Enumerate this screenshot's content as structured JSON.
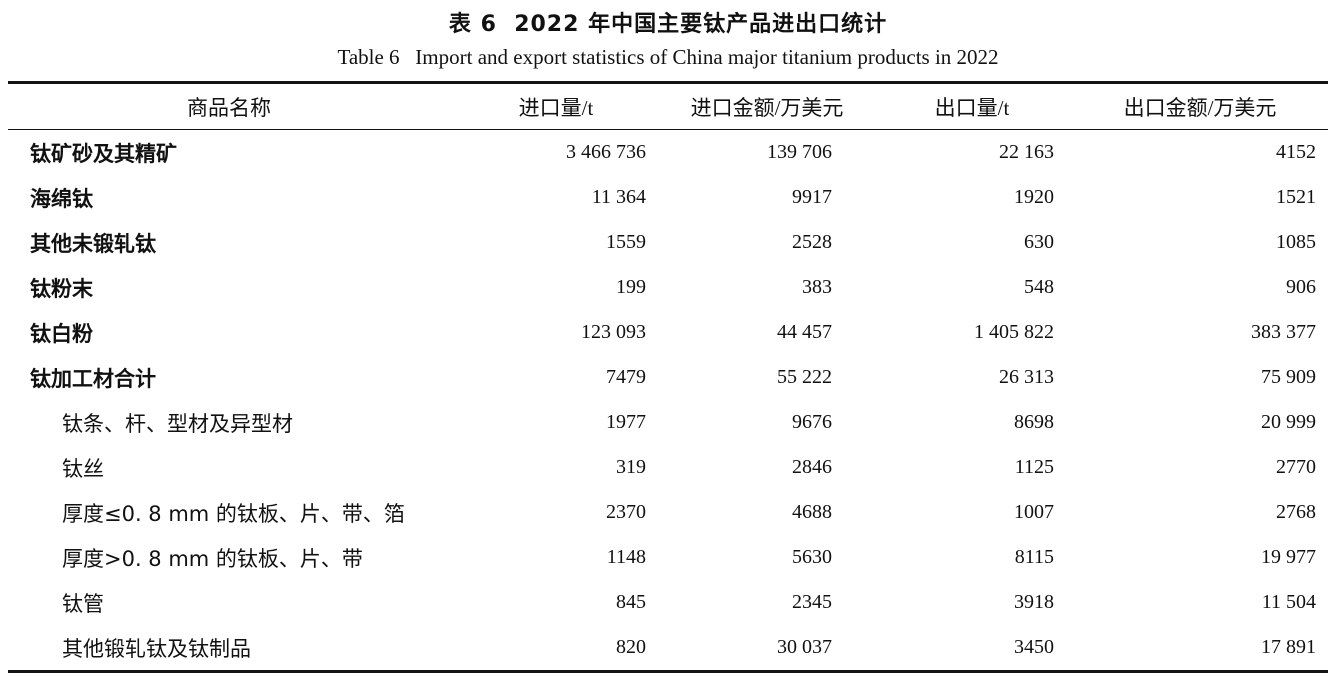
{
  "caption": {
    "zh": "表 6  2022 年中国主要钛产品进出口统计",
    "en": "Table 6   Import and export statistics of China major titanium products in 2022"
  },
  "table": {
    "headers": [
      "商品名称",
      "进口量/t",
      "进口金额/万美元",
      "出口量/t",
      "出口金额/万美元"
    ],
    "rows": [
      {
        "name": "钛矿砂及其精矿",
        "level": "main",
        "import_qty": "3 466 736",
        "import_value": "139 706",
        "export_qty": "22 163",
        "export_value": "4152"
      },
      {
        "name": "海绵钛",
        "level": "main",
        "import_qty": "11 364",
        "import_value": "9917",
        "export_qty": "1920",
        "export_value": "1521"
      },
      {
        "name": "其他未锻轧钛",
        "level": "main",
        "import_qty": "1559",
        "import_value": "2528",
        "export_qty": "630",
        "export_value": "1085"
      },
      {
        "name": "钛粉末",
        "level": "main",
        "import_qty": "199",
        "import_value": "383",
        "export_qty": "548",
        "export_value": "906"
      },
      {
        "name": "钛白粉",
        "level": "main",
        "import_qty": "123 093",
        "import_value": "44 457",
        "export_qty": "1 405 822",
        "export_value": "383 377"
      },
      {
        "name": "钛加工材合计",
        "level": "main",
        "import_qty": "7479",
        "import_value": "55 222",
        "export_qty": "26 313",
        "export_value": "75 909"
      },
      {
        "name": "钛条、杆、型材及异型材",
        "level": "sub",
        "import_qty": "1977",
        "import_value": "9676",
        "export_qty": "8698",
        "export_value": "20 999"
      },
      {
        "name": "钛丝",
        "level": "sub",
        "import_qty": "319",
        "import_value": "2846",
        "export_qty": "1125",
        "export_value": "2770"
      },
      {
        "name": "厚度≤0. 8 mm 的钛板、片、带、箔",
        "level": "sub",
        "import_qty": "2370",
        "import_value": "4688",
        "export_qty": "1007",
        "export_value": "2768"
      },
      {
        "name": "厚度>0. 8 mm 的钛板、片、带",
        "level": "sub",
        "import_qty": "1148",
        "import_value": "5630",
        "export_qty": "8115",
        "export_value": "19 977"
      },
      {
        "name": "钛管",
        "level": "sub",
        "import_qty": "845",
        "import_value": "2345",
        "export_qty": "3918",
        "export_value": "11 504"
      },
      {
        "name": "其他锻轧钛及钛制品",
        "level": "sub",
        "import_qty": "820",
        "import_value": "30 037",
        "export_qty": "3450",
        "export_value": "17 891"
      }
    ]
  },
  "chart_data": {
    "type": "table",
    "title": "表 6 2022 年中国主要钛产品进出口统计 / Table 6 Import and export statistics of China major titanium products in 2022",
    "columns": [
      "商品名称",
      "进口量/t",
      "进口金额/万美元",
      "出口量/t",
      "出口金额/万美元"
    ],
    "rows": [
      [
        "钛矿砂及其精矿",
        3466736,
        139706,
        22163,
        4152
      ],
      [
        "海绵钛",
        11364,
        9917,
        1920,
        1521
      ],
      [
        "其他未锻轧钛",
        1559,
        2528,
        630,
        1085
      ],
      [
        "钛粉末",
        199,
        383,
        548,
        906
      ],
      [
        "钛白粉",
        123093,
        44457,
        1405822,
        383377
      ],
      [
        "钛加工材合计",
        7479,
        55222,
        26313,
        75909
      ],
      [
        "钛条、杆、型材及异型材",
        1977,
        9676,
        8698,
        20999
      ],
      [
        "钛丝",
        319,
        2846,
        1125,
        2770
      ],
      [
        "厚度≤0.8 mm 的钛板、片、带、箔",
        2370,
        4688,
        1007,
        2768
      ],
      [
        "厚度>0.8 mm 的钛板、片、带",
        1148,
        5630,
        8115,
        19977
      ],
      [
        "钛管",
        845,
        2345,
        3918,
        11504
      ],
      [
        "其他锻轧钛及钛制品",
        820,
        30037,
        3450,
        17891
      ]
    ]
  }
}
